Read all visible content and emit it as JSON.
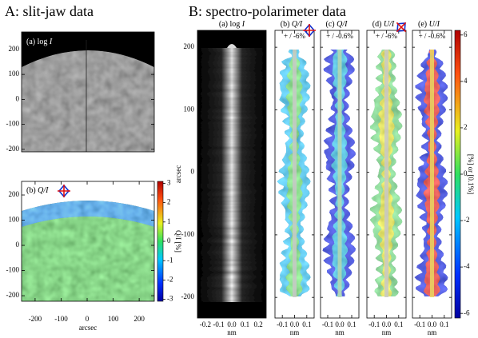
{
  "a": {
    "title": "A: slit-jaw data",
    "log_panel": {
      "label": "(a) log ",
      "label_var": "I",
      "ylim": [
        -210,
        270
      ],
      "yticks": [
        200,
        100,
        0,
        -100,
        -200
      ]
    },
    "q_panel": {
      "label": "(b) ",
      "label_var": "Q/I",
      "ylim": [
        -222,
        254
      ],
      "yticks": [
        200,
        100,
        0,
        -100,
        -200
      ],
      "xlim": [
        -252,
        258
      ],
      "xticks": [
        -200,
        -100,
        0,
        100,
        200
      ],
      "xlabel": "arcsec",
      "colorbar": {
        "label": "Q/I [%]",
        "lim": [
          -3.1,
          3.1
        ],
        "ticks": [
          3,
          2,
          1,
          0,
          -1,
          -2,
          -3
        ]
      }
    }
  },
  "b": {
    "title": "B: spectro-polarimeter data",
    "ylabel": "arcsec",
    "ylim": [
      -233,
      227
    ],
    "yticks": [
      200,
      100,
      0,
      -100,
      -200
    ],
    "panels": [
      {
        "label": "(a) log ",
        "label_var": "I",
        "xlim": [
          -0.26,
          0.26
        ],
        "xticks": [
          -0.2,
          -0.1,
          {
            "value": 0,
            "label": "0.0"
          },
          0.1,
          0.2
        ],
        "xlabel": "nm"
      },
      {
        "label": "(b) ",
        "label_var": "Q/I",
        "range": "+ / -6%",
        "xlim": [
          -0.16,
          0.16
        ],
        "xticks": [
          -0.1,
          {
            "value": 0,
            "label": "0.0"
          },
          0.1
        ],
        "xlabel": "nm"
      },
      {
        "label": "(c) ",
        "label_var": "Q/I",
        "range": "+ / -0.6%",
        "xlim": [
          -0.16,
          0.16
        ],
        "xticks": [
          -0.1,
          {
            "value": 0,
            "label": "0.0"
          },
          0.1
        ],
        "xlabel": "nm"
      },
      {
        "label": "(d) ",
        "label_var": "U/I",
        "range": "+ / -6%",
        "xlim": [
          -0.16,
          0.16
        ],
        "xticks": [
          -0.1,
          {
            "value": 0,
            "label": "0.0"
          },
          0.1
        ],
        "xlabel": "nm"
      },
      {
        "label": "(e) ",
        "label_var": "U/I",
        "range": "+ / -0.6%",
        "xlim": [
          -0.16,
          0.16
        ],
        "xticks": [
          -0.1,
          {
            "value": 0,
            "label": "0.0"
          },
          0.1
        ],
        "xlabel": "nm"
      }
    ],
    "colorbar": {
      "label": "[%] or [0.1%]",
      "lim": [
        -6.2,
        6.2
      ],
      "ticks": [
        6,
        4,
        2,
        0,
        -2,
        -4,
        -6
      ]
    }
  }
}
